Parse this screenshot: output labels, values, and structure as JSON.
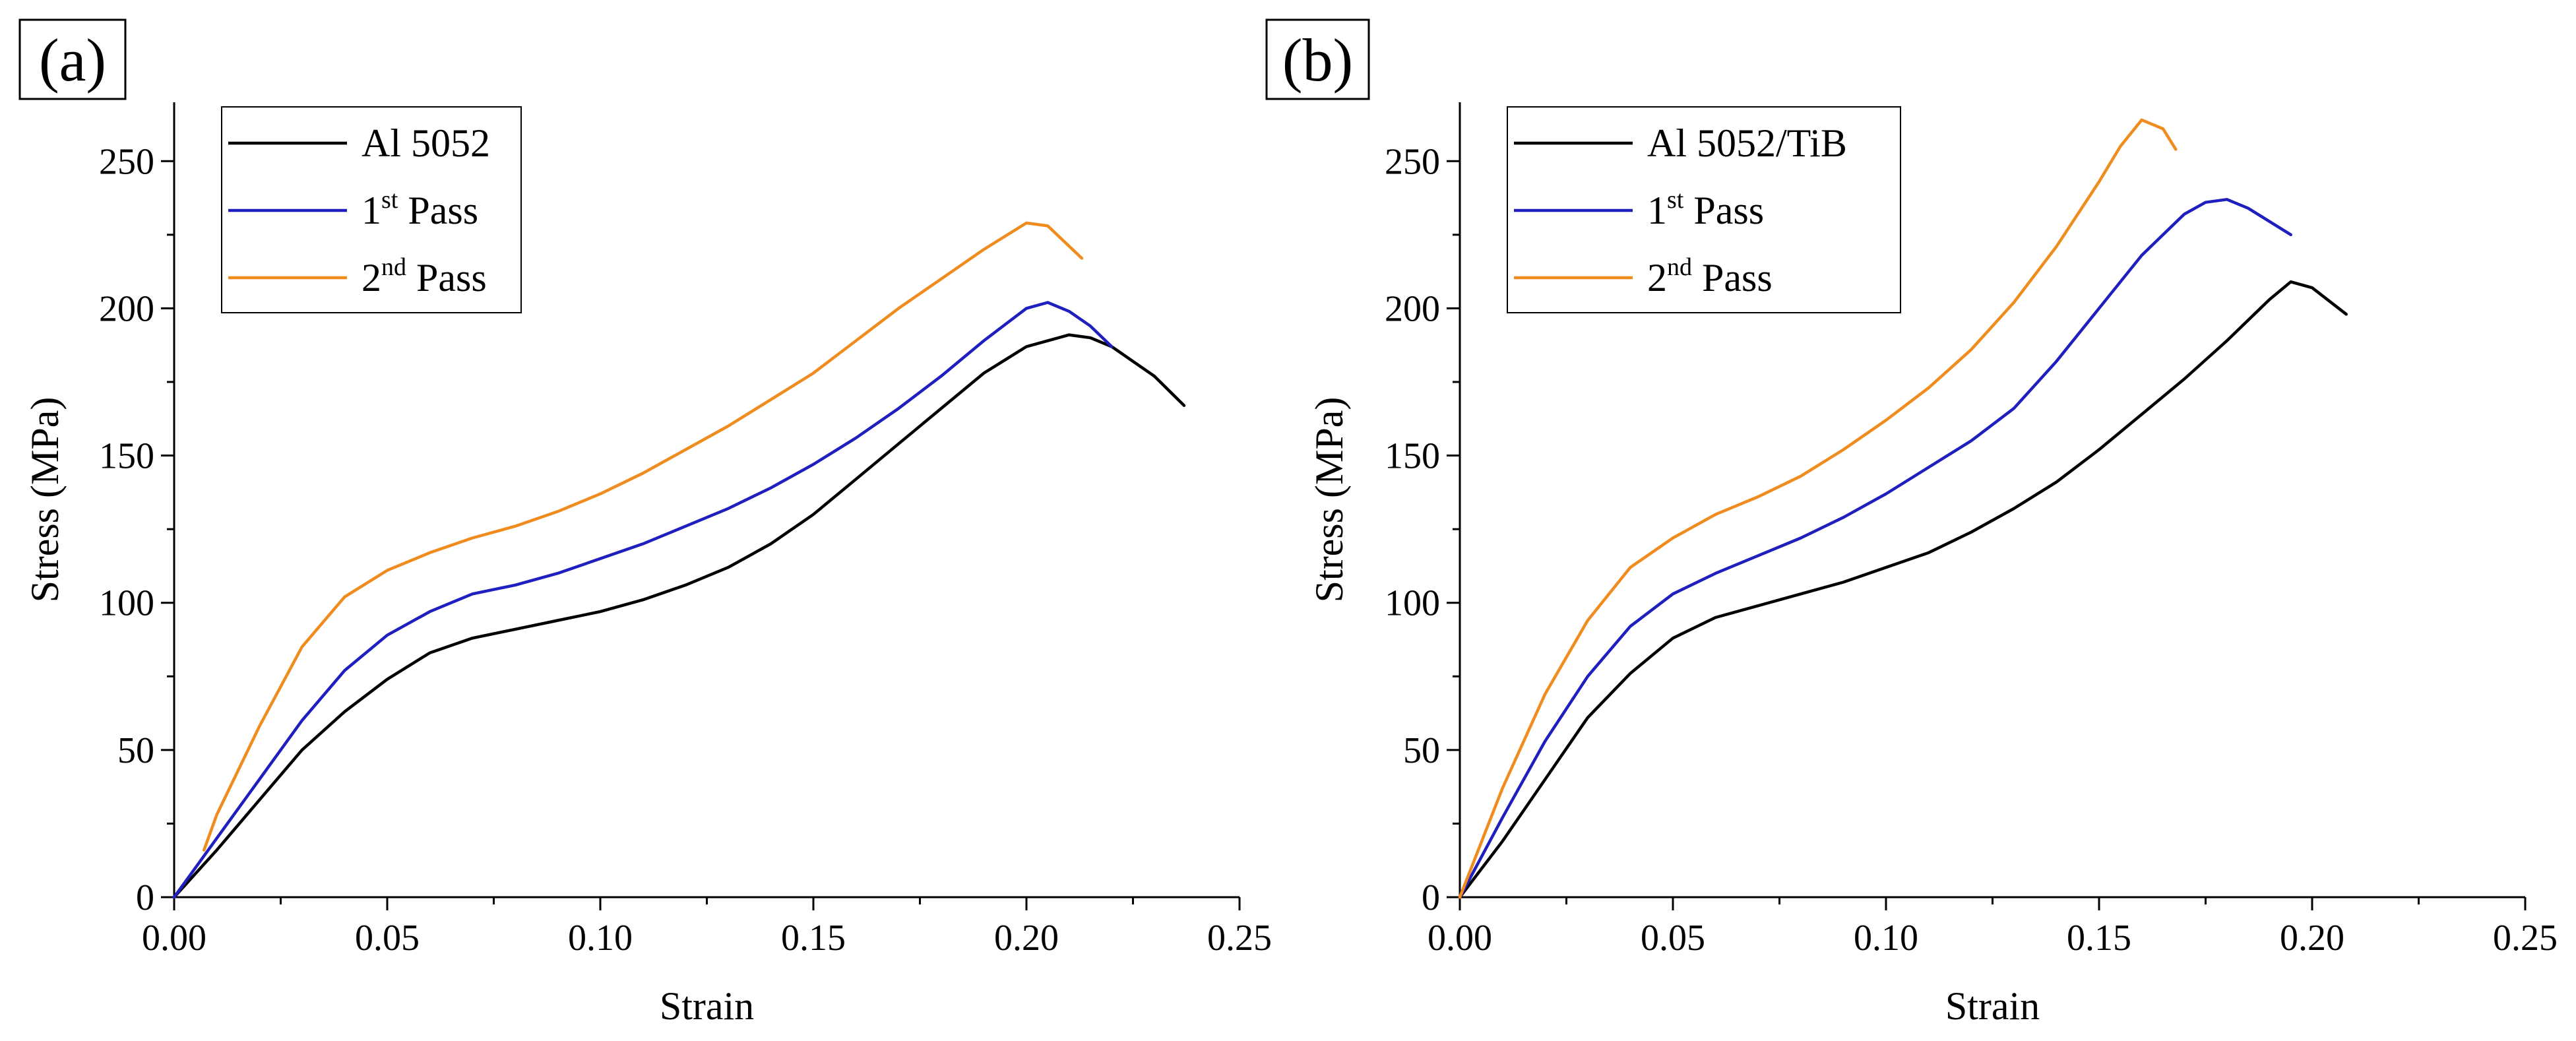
{
  "chart_data": [
    {
      "type": "line",
      "panel_label": "(a)",
      "xlabel": "Strain",
      "ylabel": "Stress (MPa)",
      "xlim": [
        0,
        0.25
      ],
      "ylim": [
        0,
        270
      ],
      "xticks": [
        0.0,
        0.05,
        0.1,
        0.15,
        0.2,
        0.25
      ],
      "xtick_labels": [
        "0.00",
        "0.05",
        "0.10",
        "0.15",
        "0.20",
        "0.25"
      ],
      "yticks": [
        0,
        50,
        100,
        150,
        200,
        250
      ],
      "ytick_labels": [
        "0",
        "50",
        "100",
        "150",
        "200",
        "250"
      ],
      "legend_position": "top-left",
      "series": [
        {
          "name": "Al 5052",
          "legend_main": "Al 5052",
          "legend_sup": "",
          "legend_tail": "",
          "color": "#000000",
          "x": [
            0.0,
            0.01,
            0.02,
            0.03,
            0.04,
            0.05,
            0.06,
            0.07,
            0.08,
            0.09,
            0.1,
            0.11,
            0.12,
            0.13,
            0.14,
            0.15,
            0.16,
            0.17,
            0.18,
            0.19,
            0.2,
            0.21,
            0.215,
            0.22,
            0.23,
            0.237
          ],
          "y": [
            0,
            16,
            33,
            50,
            63,
            74,
            83,
            88,
            91,
            94,
            97,
            101,
            106,
            112,
            120,
            130,
            142,
            154,
            166,
            178,
            187,
            191,
            190,
            187,
            177,
            167
          ]
        },
        {
          "name": "1st Pass",
          "legend_main": "1",
          "legend_sup": "st",
          "legend_tail": " Pass",
          "color": "#1f1fbf",
          "x": [
            0.0,
            0.01,
            0.02,
            0.03,
            0.04,
            0.05,
            0.06,
            0.07,
            0.08,
            0.09,
            0.1,
            0.11,
            0.12,
            0.13,
            0.14,
            0.15,
            0.16,
            0.17,
            0.18,
            0.19,
            0.2,
            0.205,
            0.21,
            0.215,
            0.22
          ],
          "y": [
            0,
            20,
            40,
            60,
            77,
            89,
            97,
            103,
            106,
            110,
            115,
            120,
            126,
            132,
            139,
            147,
            156,
            166,
            177,
            189,
            200,
            202,
            199,
            194,
            187
          ]
        },
        {
          "name": "2nd Pass",
          "legend_main": "2",
          "legend_sup": "nd",
          "legend_tail": " Pass",
          "color": "#f08c1e",
          "x": [
            0.007,
            0.01,
            0.02,
            0.03,
            0.04,
            0.05,
            0.06,
            0.07,
            0.08,
            0.09,
            0.1,
            0.11,
            0.12,
            0.13,
            0.14,
            0.15,
            0.16,
            0.17,
            0.18,
            0.19,
            0.2,
            0.205,
            0.213
          ],
          "y": [
            16,
            28,
            58,
            85,
            102,
            111,
            117,
            122,
            126,
            131,
            137,
            144,
            152,
            160,
            169,
            178,
            189,
            200,
            210,
            220,
            229,
            228,
            217
          ]
        }
      ]
    },
    {
      "type": "line",
      "panel_label": "(b)",
      "xlabel": "Strain",
      "ylabel": "Stress (MPa)",
      "xlim": [
        0,
        0.25
      ],
      "ylim": [
        0,
        270
      ],
      "xticks": [
        0.0,
        0.05,
        0.1,
        0.15,
        0.2,
        0.25
      ],
      "xtick_labels": [
        "0.00",
        "0.05",
        "0.10",
        "0.15",
        "0.20",
        "0.25"
      ],
      "yticks": [
        0,
        50,
        100,
        150,
        200,
        250
      ],
      "ytick_labels": [
        "0",
        "50",
        "100",
        "150",
        "200",
        "250"
      ],
      "legend_position": "top-left",
      "series": [
        {
          "name": "Al 5052/TiB",
          "legend_main": "Al 5052/TiB",
          "legend_sup": "",
          "legend_tail": "",
          "color": "#000000",
          "x": [
            0.0,
            0.01,
            0.02,
            0.03,
            0.04,
            0.05,
            0.06,
            0.07,
            0.08,
            0.09,
            0.1,
            0.11,
            0.12,
            0.13,
            0.14,
            0.15,
            0.16,
            0.17,
            0.18,
            0.19,
            0.195,
            0.2,
            0.208
          ],
          "y": [
            0,
            19,
            40,
            61,
            76,
            88,
            95,
            99,
            103,
            107,
            112,
            117,
            124,
            132,
            141,
            152,
            164,
            176,
            189,
            203,
            209,
            207,
            198
          ]
        },
        {
          "name": "1st Pass",
          "legend_main": "1",
          "legend_sup": "st",
          "legend_tail": " Pass",
          "color": "#1f1fbf",
          "x": [
            0.0,
            0.01,
            0.02,
            0.03,
            0.04,
            0.05,
            0.06,
            0.07,
            0.08,
            0.09,
            0.1,
            0.11,
            0.12,
            0.13,
            0.14,
            0.15,
            0.16,
            0.17,
            0.175,
            0.18,
            0.185,
            0.195
          ],
          "y": [
            0,
            27,
            53,
            75,
            92,
            103,
            110,
            116,
            122,
            129,
            137,
            146,
            155,
            166,
            182,
            200,
            218,
            232,
            236,
            237,
            234,
            225
          ]
        },
        {
          "name": "2nd Pass",
          "legend_main": "2",
          "legend_sup": "nd",
          "legend_tail": " Pass",
          "color": "#f08c1e",
          "x": [
            0.0,
            0.01,
            0.02,
            0.03,
            0.04,
            0.05,
            0.06,
            0.07,
            0.08,
            0.09,
            0.1,
            0.11,
            0.12,
            0.13,
            0.14,
            0.15,
            0.155,
            0.16,
            0.165,
            0.168
          ],
          "y": [
            0,
            37,
            69,
            94,
            112,
            122,
            130,
            136,
            143,
            152,
            162,
            173,
            186,
            202,
            221,
            243,
            255,
            264,
            261,
            254
          ]
        }
      ]
    }
  ]
}
